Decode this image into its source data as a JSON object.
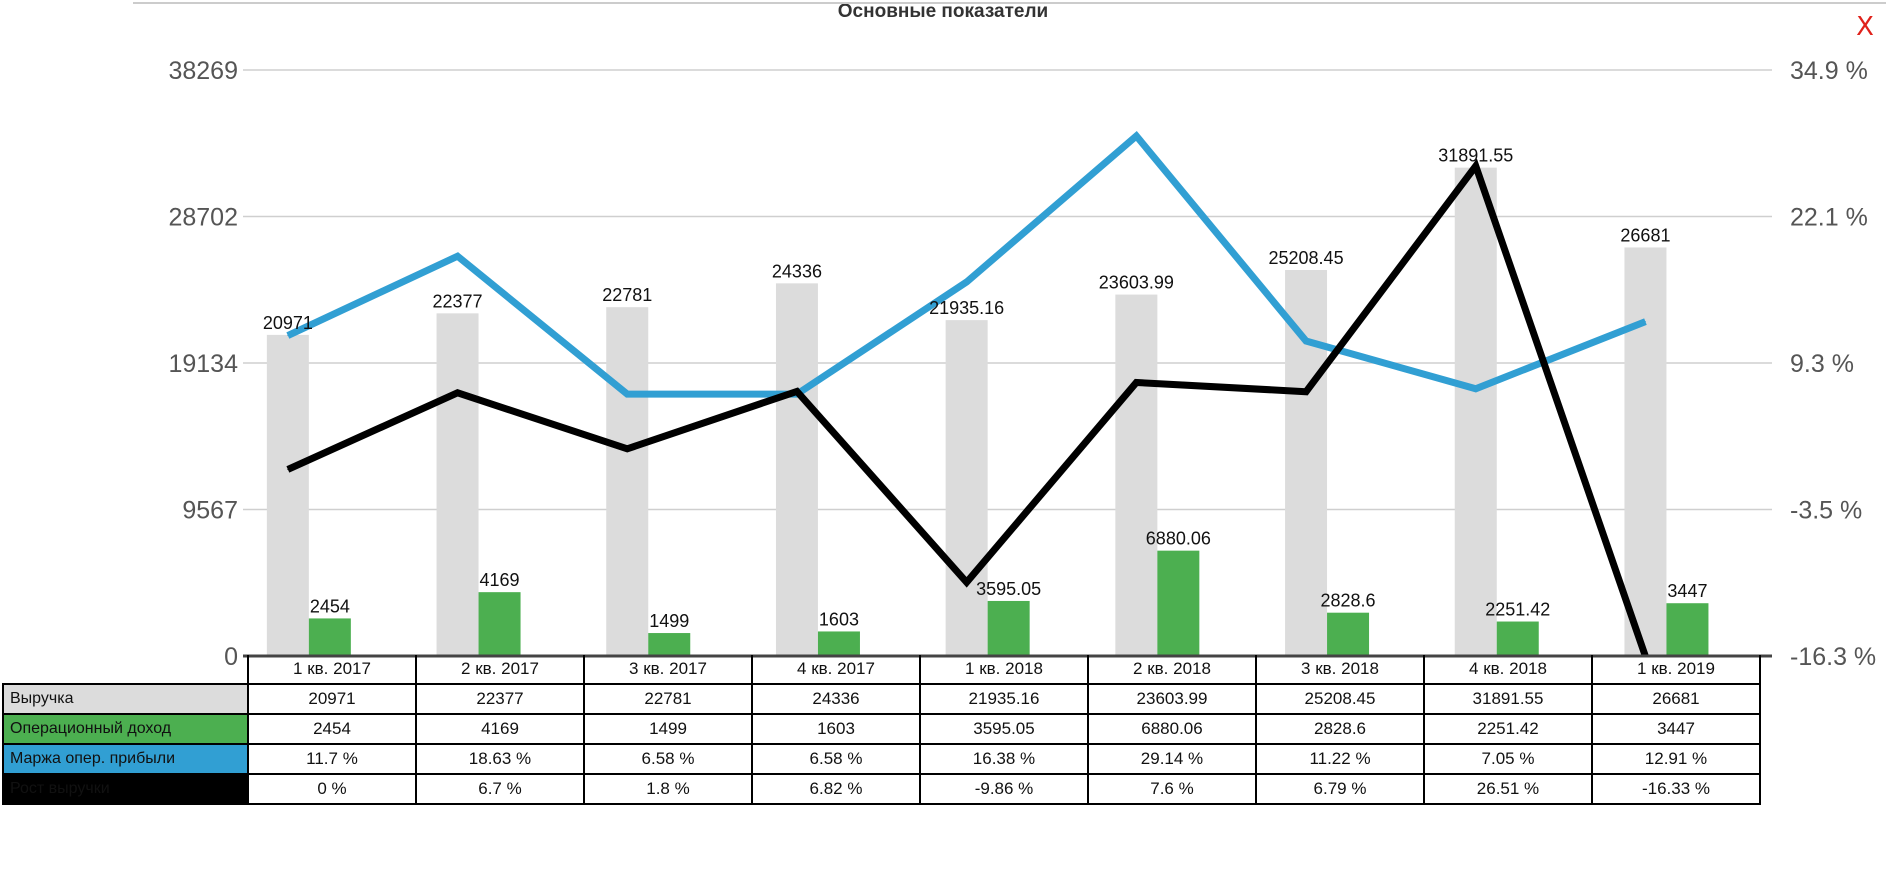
{
  "title": "Основные показатели",
  "close_label": "X",
  "colors": {
    "revenue": "#dcdcdc",
    "operating_income": "#4caf50",
    "margin": "#319fd3",
    "growth": "#000000",
    "close": "#e0221b"
  },
  "chart_data": {
    "type": "bar",
    "title": "Основные показатели",
    "categories": [
      "1 кв. 2017",
      "2 кв. 2017",
      "3 кв. 2017",
      "4 кв. 2017",
      "1 кв. 2018",
      "2 кв. 2018",
      "3 кв. 2018",
      "4 кв. 2018",
      "1 кв. 2019"
    ],
    "y_left": {
      "ticks": [
        "38269",
        "28702",
        "19134",
        "9567",
        "0"
      ],
      "range": [
        0,
        38269
      ]
    },
    "y_right": {
      "ticks": [
        "34.9 %",
        "22.1 %",
        "9.3 %",
        "-3.5 %",
        "-16.3 %"
      ],
      "range": [
        -16.3,
        34.9
      ]
    },
    "grid": true,
    "series": [
      {
        "name": "Выручка",
        "type": "bar",
        "axis": "left",
        "values": [
          20971,
          22377,
          22781,
          24336,
          21935.16,
          23603.99,
          25208.45,
          31891.55,
          26681
        ],
        "labels": [
          "20971",
          "22377",
          "22781",
          "24336",
          "21935.16",
          "23603.99",
          "25208.45",
          "31891.55",
          "26681"
        ]
      },
      {
        "name": "Операционный доход",
        "type": "bar",
        "axis": "left",
        "values": [
          2454,
          4169,
          1499,
          1603,
          3595.05,
          6880.06,
          2828.6,
          2251.42,
          3447
        ],
        "labels": [
          "2454",
          "4169",
          "1499",
          "1603",
          "3595.05",
          "6880.06",
          "2828.6",
          "2251.42",
          "3447"
        ]
      },
      {
        "name": "Маржа опер. прибыли",
        "type": "line",
        "axis": "right",
        "values": [
          11.7,
          18.63,
          6.58,
          6.58,
          16.38,
          29.14,
          11.22,
          7.05,
          12.91
        ],
        "labels": [
          "11.7 %",
          "18.63 %",
          "6.58 %",
          "6.58 %",
          "16.38 %",
          "29.14 %",
          "11.22 %",
          "7.05 %",
          "12.91 %"
        ]
      },
      {
        "name": "Рост выручки",
        "type": "line",
        "axis": "right",
        "values": [
          0,
          6.7,
          1.8,
          6.82,
          -9.86,
          7.6,
          6.79,
          26.51,
          -16.33
        ],
        "labels": [
          "0 %",
          "6.7 %",
          "1.8 %",
          "6.82 %",
          "-9.86 %",
          "7.6 %",
          "6.79 %",
          "26.51 %",
          "-16.33 %"
        ]
      }
    ]
  }
}
